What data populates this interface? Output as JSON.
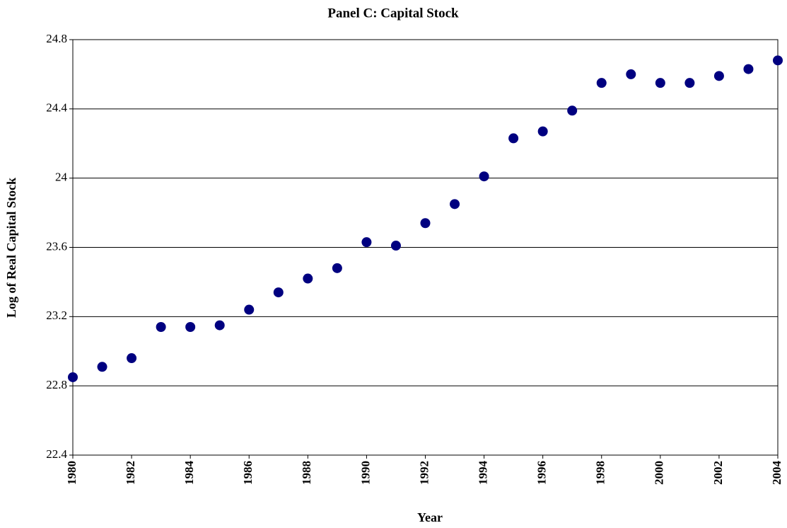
{
  "chart_data": {
    "type": "scatter",
    "title": "Panel C: Capital Stock",
    "x_label": "Year",
    "y_label": "Log of Real Capital Stock",
    "x": [
      1980,
      1981,
      1982,
      1983,
      1984,
      1985,
      1986,
      1987,
      1988,
      1989,
      1990,
      1991,
      1992,
      1993,
      1994,
      1995,
      1996,
      1997,
      1998,
      1999,
      2000,
      2001,
      2002,
      2003,
      2004
    ],
    "values": [
      22.85,
      22.91,
      22.96,
      23.14,
      23.14,
      23.15,
      23.24,
      23.34,
      23.42,
      23.48,
      23.63,
      23.61,
      23.74,
      23.85,
      24.01,
      24.23,
      24.27,
      24.39,
      24.55,
      24.6,
      24.55,
      24.55,
      24.59,
      24.63,
      24.68
    ],
    "color": "#000080",
    "xlim": [
      1980,
      2004
    ],
    "xticks": [
      1980,
      1982,
      1984,
      1986,
      1988,
      1990,
      1992,
      1994,
      1996,
      1998,
      2000,
      2002,
      2004
    ],
    "ylim": [
      22.4,
      24.8
    ],
    "yticks": [
      22.4,
      22.8,
      23.2,
      23.6,
      24,
      24.4,
      24.8
    ],
    "grid": true
  }
}
